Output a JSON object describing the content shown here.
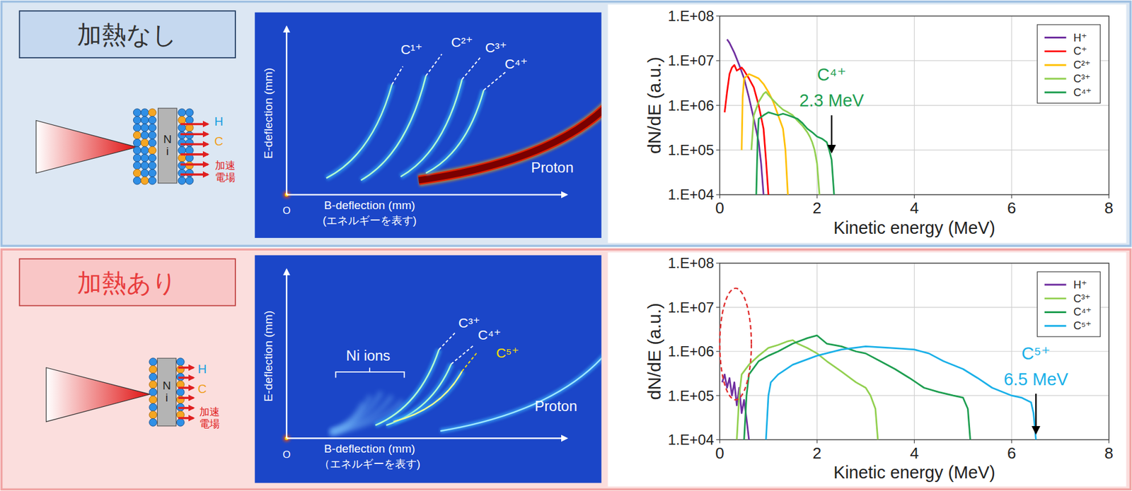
{
  "panels": [
    {
      "header": "加熱なし",
      "target": {
        "metal": "Ni",
        "labels": [
          "H",
          "C"
        ],
        "field_label": "加速電場"
      },
      "image": {
        "y_axis_label": "E-deflection (mm)",
        "x_axis_label": "B-deflection (mm)",
        "x_axis_sublabel": "(エネルギーを表す)",
        "origin": "O",
        "traces": [
          "C¹⁺",
          "C²⁺",
          "C³⁺",
          "C⁴⁺"
        ],
        "proton": "Proton"
      }
    },
    {
      "header": "加熱あり",
      "target": {
        "metal": "Ni",
        "labels": [
          "H",
          "C"
        ],
        "field_label": "加速電場"
      },
      "image": {
        "y_axis_label": "E-deflection (mm)",
        "x_axis_label": "B-deflection (mm)",
        "x_axis_sublabel": "（エネルギーを表す)",
        "origin": "O",
        "traces": [
          "C³⁺",
          "C⁴⁺",
          "C⁵⁺"
        ],
        "proton": "Proton",
        "group_label": "Ni ions"
      }
    }
  ],
  "chart_data": [
    {
      "type": "line",
      "x_label": "Kinetic energy (MeV)",
      "y_label": "dN/dE (a.u.)",
      "xlim": [
        0,
        8
      ],
      "xticks": [
        0,
        2,
        4,
        6,
        8
      ],
      "ylim": [
        10000,
        100000000
      ],
      "yticks": [
        {
          "value": 10000,
          "label": "1.E+04"
        },
        {
          "value": 100000,
          "label": "1.E+05"
        },
        {
          "value": 1000000,
          "label": "1.E+06"
        },
        {
          "value": 10000000,
          "label": "1.E+07"
        },
        {
          "value": 100000000,
          "label": "1.E+08"
        }
      ],
      "log": "y",
      "grid": true,
      "legend": "upper right",
      "series": [
        {
          "name": "H⁺",
          "color": "#7030a0",
          "x": [
            0.15,
            0.2,
            0.3,
            0.4,
            0.5,
            0.6,
            0.7,
            0.8,
            0.85,
            0.9
          ],
          "values": [
            30000000,
            25000000,
            15000000,
            8000000,
            4000000,
            1500000,
            500000,
            150000,
            50000,
            10000
          ]
        },
        {
          "name": "C⁺",
          "color": "#ff0000",
          "x": [
            0.1,
            0.15,
            0.2,
            0.25,
            0.3,
            0.35,
            0.4,
            0.45,
            0.5,
            0.6,
            0.7,
            0.8,
            0.9,
            0.95,
            1.0
          ],
          "values": [
            700000,
            2000000,
            5000000,
            7000000,
            8000000,
            6000000,
            6500000,
            7000000,
            6000000,
            4000000,
            2500000,
            1000000,
            300000,
            60000,
            10000
          ]
        },
        {
          "name": "C²⁺",
          "color": "#ffc000",
          "x": [
            0.45,
            0.47,
            0.5,
            0.6,
            0.7,
            0.8,
            0.9,
            1.0,
            1.1,
            1.2,
            1.3,
            1.35,
            1.4
          ],
          "values": [
            100000,
            1500000,
            4000000,
            5000000,
            4500000,
            4000000,
            3000000,
            2000000,
            1200000,
            600000,
            300000,
            100000,
            10000
          ]
        },
        {
          "name": "C³⁺",
          "color": "#92d050",
          "x": [
            0.65,
            0.7,
            0.8,
            0.9,
            0.95,
            1.0,
            1.1,
            1.2,
            1.3,
            1.4,
            1.5,
            1.6,
            1.7,
            1.8,
            1.85,
            1.9,
            1.95,
            2.0,
            2.05
          ],
          "values": [
            100000,
            600000,
            1200000,
            1800000,
            2000000,
            1700000,
            1300000,
            1000000,
            800000,
            700000,
            600000,
            450000,
            350000,
            250000,
            200000,
            150000,
            100000,
            50000,
            10000
          ]
        },
        {
          "name": "C⁴⁺",
          "color": "#1e9e50",
          "x": [
            0.75,
            0.78,
            0.8,
            0.9,
            1.0,
            1.1,
            1.2,
            1.3,
            1.4,
            1.5,
            1.6,
            1.7,
            1.8,
            1.9,
            2.0,
            2.1,
            2.2,
            2.25,
            2.3,
            2.35
          ],
          "values": [
            10000,
            200000,
            500000,
            600000,
            700000,
            650000,
            600000,
            650000,
            600000,
            550000,
            500000,
            400000,
            300000,
            250000,
            200000,
            180000,
            150000,
            100000,
            60000,
            10000
          ]
        }
      ],
      "annotations": [
        {
          "label": "C⁴⁺",
          "text": "2.3 MeV",
          "x": 2.3,
          "y": [
            600000,
            90000
          ],
          "color": "#1e9e50"
        }
      ]
    },
    {
      "type": "line",
      "x_label": "Kinetic energy (MeV)",
      "y_label": "dN/dE (a.u.)",
      "xlim": [
        0,
        8
      ],
      "xticks": [
        0,
        2,
        4,
        6,
        8
      ],
      "ylim": [
        10000,
        100000000
      ],
      "yticks": [
        {
          "value": 10000,
          "label": "1.E+04"
        },
        {
          "value": 100000,
          "label": "1.E+05"
        },
        {
          "value": 1000000,
          "label": "1.E+06"
        },
        {
          "value": 10000000,
          "label": "1.E+07"
        },
        {
          "value": 100000000,
          "label": "1.E+08"
        }
      ],
      "log": "y",
      "grid": true,
      "legend": "upper right",
      "series": [
        {
          "name": "H⁺",
          "color": "#7030a0",
          "x": [
            0.05,
            0.1,
            0.15,
            0.2,
            0.25,
            0.3,
            0.35,
            0.4,
            0.45,
            0.5,
            0.55,
            0.6
          ],
          "values": [
            200000,
            300000,
            150000,
            250000,
            100000,
            200000,
            60000,
            150000,
            40000,
            80000,
            30000,
            10000
          ]
        },
        {
          "name": "C³⁺",
          "color": "#92d050",
          "x": [
            0.35,
            0.4,
            0.45,
            0.6,
            0.8,
            1.0,
            1.2,
            1.4,
            1.5,
            1.6,
            1.8,
            2.0,
            2.2,
            2.5,
            2.8,
            3.0,
            3.1,
            3.2,
            3.25
          ],
          "values": [
            10000,
            100000,
            300000,
            500000,
            800000,
            1200000,
            1400000,
            1700000,
            1800000,
            1500000,
            1200000,
            900000,
            600000,
            350000,
            200000,
            150000,
            100000,
            50000,
            10000
          ]
        },
        {
          "name": "C⁴⁺",
          "color": "#1e9e50",
          "x": [
            0.5,
            0.55,
            0.6,
            0.8,
            1.0,
            1.2,
            1.5,
            1.8,
            2.0,
            2.2,
            2.5,
            2.8,
            3.0,
            3.3,
            3.6,
            3.9,
            4.2,
            4.5,
            4.8,
            5.0,
            5.1,
            5.15
          ],
          "values": [
            10000,
            100000,
            300000,
            600000,
            800000,
            1000000,
            1500000,
            2000000,
            2300000,
            1500000,
            1300000,
            1000000,
            900000,
            600000,
            400000,
            250000,
            150000,
            120000,
            100000,
            90000,
            50000,
            10000
          ]
        },
        {
          "name": "C⁵⁺",
          "color": "#1ab0e8",
          "x": [
            0.95,
            1.0,
            1.05,
            1.2,
            1.5,
            2.0,
            2.5,
            3.0,
            3.5,
            4.0,
            4.3,
            4.6,
            5.0,
            5.3,
            5.6,
            6.0,
            6.2,
            6.4,
            6.45,
            6.5
          ],
          "values": [
            10000,
            100000,
            200000,
            300000,
            500000,
            800000,
            1100000,
            1300000,
            1200000,
            1100000,
            900000,
            600000,
            400000,
            250000,
            150000,
            100000,
            90000,
            70000,
            40000,
            10000
          ]
        }
      ],
      "annotations": [
        {
          "label": "C⁵⁺",
          "text": "6.5 MeV",
          "x": 6.5,
          "y": [
            110000,
            14000
          ],
          "color": "#1ab0e8"
        }
      ],
      "highlight": {
        "x": [
          0,
          0.65
        ],
        "y": [
          80000,
          27000000
        ]
      }
    }
  ]
}
